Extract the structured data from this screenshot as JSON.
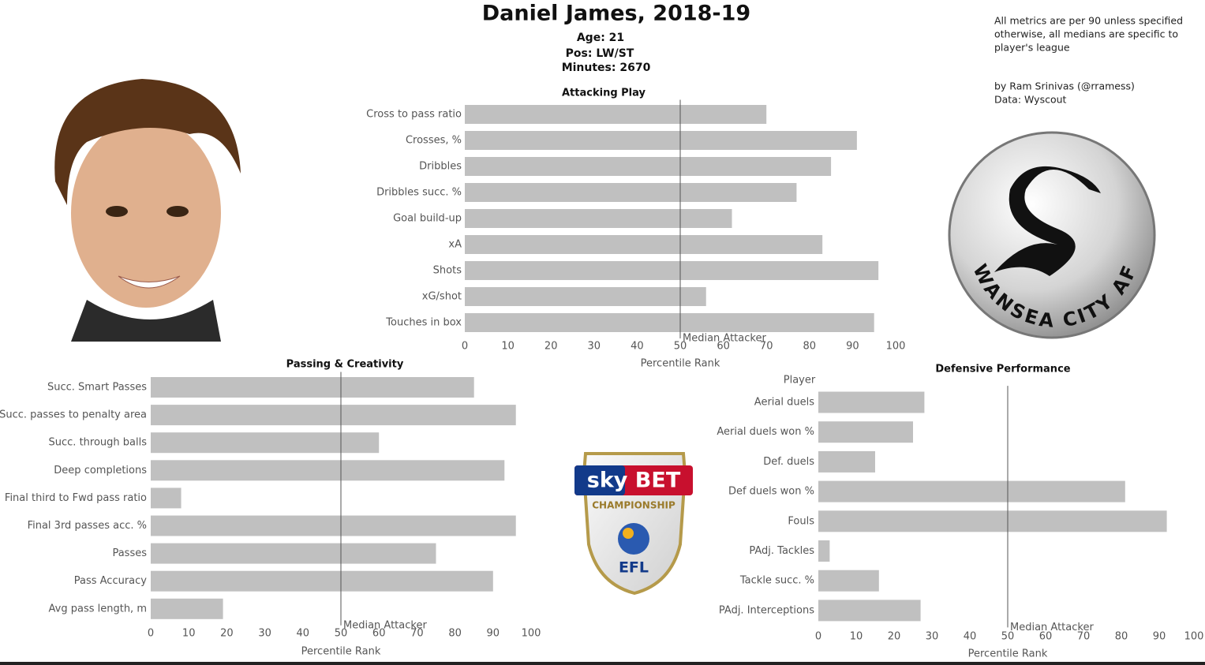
{
  "header": {
    "title": "Daniel James, 2018-19",
    "age": "Age: 21",
    "position": "Pos: LW/ST",
    "minutes": "Minutes: 2670"
  },
  "notes": {
    "lines": [
      "All metrics are per 90 unless specified",
      "otherwise, all medians are specific to",
      "player's league"
    ],
    "credit": "by Ram Srinivas (@rramess)",
    "source": "Data: Wyscout"
  },
  "logos": {
    "club": "SWANSEA CITY AFC",
    "league_sponsor": "sky BET",
    "league_name": "CHAMPIONSHIP",
    "league_short": "EFL"
  },
  "chart_data": [
    {
      "type": "bar",
      "orientation": "horizontal",
      "title": "Attacking Play",
      "categories": [
        "Cross to pass ratio",
        "Crosses, %",
        "Dribbles",
        "Dribbles succ. %",
        "Goal build-up",
        "xA",
        "Shots",
        "xG/shot",
        "Touches in box"
      ],
      "values": [
        70,
        91,
        85,
        77,
        62,
        83,
        96,
        56,
        95
      ],
      "color": "#c0c0c0",
      "xlim": [
        0,
        100
      ],
      "xticks": [
        0,
        10,
        20,
        30,
        40,
        50,
        60,
        70,
        80,
        90,
        100
      ],
      "xlabel": "Percentile Rank",
      "median": {
        "value": 50,
        "label": "Median Attacker"
      }
    },
    {
      "type": "bar",
      "orientation": "horizontal",
      "title": "Passing & Creativity",
      "categories": [
        "Succ. Smart Passes",
        "Succ. passes to penalty area",
        "Succ. through balls",
        "Deep completions",
        "Final third to Fwd pass ratio",
        "Final 3rd passes acc. %",
        "Passes",
        "Pass Accuracy",
        "Avg pass length, m"
      ],
      "values": [
        85,
        96,
        60,
        93,
        8,
        96,
        75,
        90,
        19
      ],
      "color": "#c0c0c0",
      "xlim": [
        0,
        100
      ],
      "xticks": [
        0,
        10,
        20,
        30,
        40,
        50,
        60,
        70,
        80,
        90,
        100
      ],
      "xlabel": "Percentile Rank",
      "median": {
        "value": 50,
        "label": "Median Attacker"
      }
    },
    {
      "type": "bar",
      "orientation": "horizontal",
      "title": "Defensive Performance",
      "legend_label": "Player",
      "categories": [
        "Aerial duels",
        "Aerial duels won %",
        "Def. duels",
        "Def duels won %",
        "Fouls",
        "PAdj. Tackles",
        "Tackle succ. %",
        "PAdj. Interceptions"
      ],
      "values": [
        28,
        25,
        15,
        81,
        92,
        3,
        16,
        27
      ],
      "color": "#c0c0c0",
      "xlim": [
        0,
        100
      ],
      "xticks": [
        0,
        10,
        20,
        30,
        40,
        50,
        60,
        70,
        80,
        90,
        100
      ],
      "xlabel": "Percentile Rank",
      "median": {
        "value": 50,
        "label": "Median Attacker"
      }
    }
  ]
}
